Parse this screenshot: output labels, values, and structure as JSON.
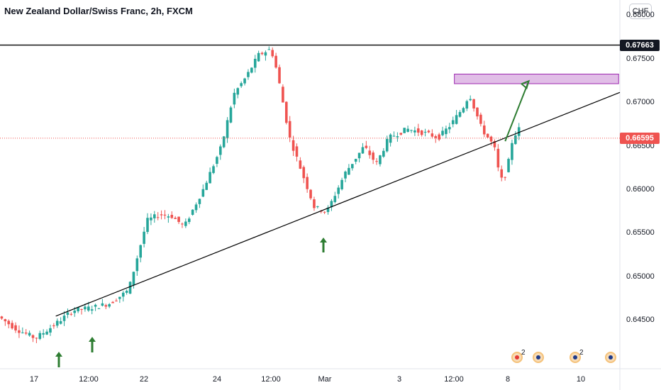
{
  "header": {
    "title": "New Zealand Dollar/Swiss Franc, 2h, FXCM",
    "currency_button": "CHF"
  },
  "price_labels": {
    "resistance": "0.67663",
    "current": "0.66595"
  },
  "colors": {
    "up": "#26a69a",
    "down": "#ef5350",
    "resistance_line": "#000000",
    "trendline": "#000000",
    "zone_fill": "#e1bee7",
    "zone_border": "#9c27b0",
    "arrows": "#2e7d32",
    "current_line": "#ef5350"
  },
  "events": [
    {
      "icon": "swiss-flag-icon",
      "count": "2"
    },
    {
      "icon": "nz-flag-icon",
      "count": ""
    },
    {
      "icon": "nz-flag-icon",
      "count": "2"
    },
    {
      "icon": "nz-flag-icon",
      "count": ""
    }
  ],
  "chart_data": {
    "type": "candlestick",
    "y_axis": {
      "ticks": [
        "0.68000",
        "0.67500",
        "0.67000",
        "0.66500",
        "0.66000",
        "0.65500",
        "0.65000",
        "0.64500"
      ],
      "range": [
        0.6395,
        0.6818
      ]
    },
    "x_axis": {
      "ticks": [
        "17",
        "12:00",
        "22",
        "24",
        "12:00",
        "Mar",
        "3",
        "12:00",
        "8",
        "10"
      ]
    },
    "resistance_level": 0.67663,
    "current_price": 0.66595,
    "supply_zone": [
      0.6722,
      0.6733
    ],
    "trendline": [
      [
        0,
        0.643
      ],
      [
        1.0,
        0.6712
      ]
    ],
    "path_keypoints": [
      [
        0.0,
        0.6455
      ],
      [
        0.03,
        0.644
      ],
      [
        0.06,
        0.643
      ],
      [
        0.09,
        0.6445
      ],
      [
        0.12,
        0.6462
      ],
      [
        0.15,
        0.6465
      ],
      [
        0.18,
        0.647
      ],
      [
        0.21,
        0.6485
      ],
      [
        0.24,
        0.6565
      ],
      [
        0.26,
        0.6572
      ],
      [
        0.28,
        0.657
      ],
      [
        0.3,
        0.6558
      ],
      [
        0.33,
        0.66
      ],
      [
        0.36,
        0.665
      ],
      [
        0.38,
        0.671
      ],
      [
        0.4,
        0.673
      ],
      [
        0.42,
        0.6755
      ],
      [
        0.44,
        0.6762
      ],
      [
        0.45,
        0.6735
      ],
      [
        0.47,
        0.666
      ],
      [
        0.49,
        0.662
      ],
      [
        0.51,
        0.658
      ],
      [
        0.53,
        0.6575
      ],
      [
        0.56,
        0.662
      ],
      [
        0.59,
        0.665
      ],
      [
        0.61,
        0.663
      ],
      [
        0.63,
        0.666
      ],
      [
        0.66,
        0.667
      ],
      [
        0.69,
        0.6665
      ],
      [
        0.71,
        0.666
      ],
      [
        0.73,
        0.6675
      ],
      [
        0.75,
        0.6695
      ],
      [
        0.76,
        0.671
      ],
      [
        0.78,
        0.667
      ],
      [
        0.8,
        0.665
      ],
      [
        0.81,
        0.661
      ],
      [
        0.82,
        0.662
      ],
      [
        0.83,
        0.666
      ],
      [
        0.84,
        0.667
      ]
    ]
  }
}
